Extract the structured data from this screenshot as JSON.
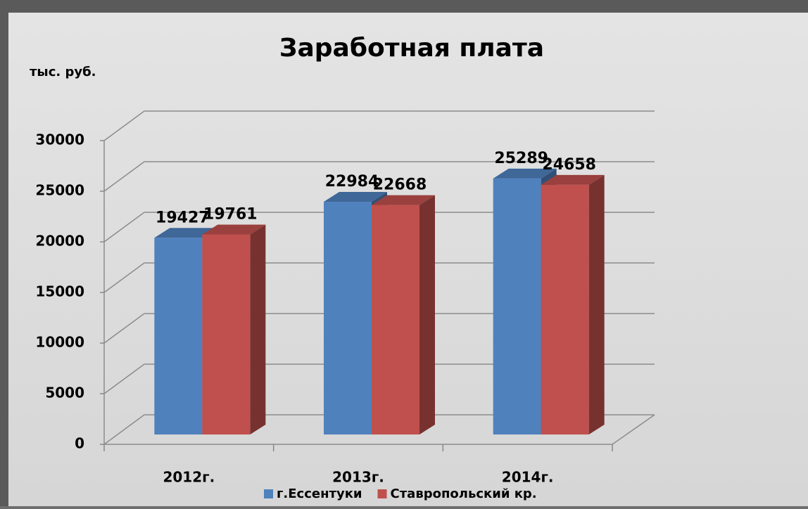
{
  "chart_data": {
    "type": "bar3d",
    "title": "Заработная плата",
    "y_label": "тыс. руб.",
    "categories": [
      "2012г.",
      "2013г.",
      "2014г."
    ],
    "series": [
      {
        "name": "г.Ессентуки",
        "color": "#4f81bd",
        "values": [
          19427,
          22984,
          25289
        ]
      },
      {
        "name": "Ставропольский кр.",
        "color": "#c0504d",
        "values": [
          19761,
          22668,
          24658
        ]
      }
    ],
    "ylim": [
      0,
      30000
    ],
    "yticks": [
      0,
      5000,
      10000,
      15000,
      20000,
      25000,
      30000
    ],
    "grid": true
  }
}
